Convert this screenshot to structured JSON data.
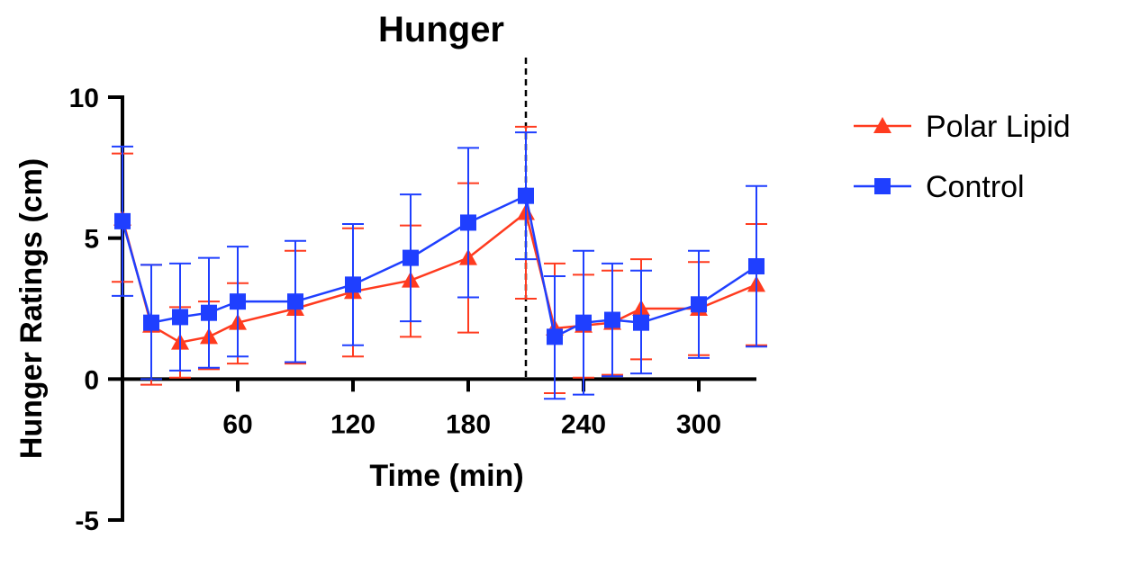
{
  "chart_data": {
    "type": "line",
    "title": "Hunger",
    "xlabel": "Time (min)",
    "ylabel": "Hunger Ratings (cm)",
    "xlim": [
      0,
      330
    ],
    "ylim": [
      -5,
      10
    ],
    "x_ticks": [
      60,
      120,
      180,
      240,
      300
    ],
    "y_ticks": [
      10,
      5,
      0,
      -5
    ],
    "vline_x": 210,
    "legend_position": "right",
    "series": [
      {
        "name": "Polar Lipid",
        "color": "#ff3b1f",
        "marker": "triangle",
        "x": [
          0,
          15,
          30,
          45,
          60,
          90,
          120,
          150,
          180,
          210,
          225,
          240,
          255,
          270,
          300,
          330
        ],
        "y": [
          5.7,
          1.9,
          1.3,
          1.5,
          2.0,
          2.5,
          3.1,
          3.5,
          4.3,
          5.9,
          1.8,
          1.9,
          2.0,
          2.5,
          2.5,
          3.35
        ],
        "err_low": [
          3.45,
          -0.2,
          0.05,
          0.35,
          0.55,
          0.55,
          0.8,
          1.5,
          1.65,
          2.85,
          -0.5,
          0.05,
          0.15,
          0.7,
          0.85,
          1.2
        ],
        "err_high": [
          8.0,
          4.05,
          2.55,
          2.75,
          3.4,
          4.55,
          5.35,
          5.45,
          6.95,
          8.95,
          4.1,
          3.7,
          3.85,
          4.25,
          4.15,
          5.5
        ]
      },
      {
        "name": "Control",
        "color": "#1f3fff",
        "marker": "square",
        "x": [
          0,
          15,
          30,
          45,
          60,
          90,
          120,
          150,
          180,
          210,
          225,
          240,
          255,
          270,
          300,
          330
        ],
        "y": [
          5.6,
          2.0,
          2.2,
          2.35,
          2.75,
          2.75,
          3.35,
          4.3,
          5.55,
          6.5,
          1.5,
          2.0,
          2.1,
          2.0,
          2.65,
          4.0
        ],
        "err_low": [
          2.95,
          0.0,
          0.3,
          0.4,
          0.8,
          0.6,
          1.2,
          2.05,
          2.9,
          4.25,
          -0.7,
          -0.55,
          0.1,
          0.2,
          0.75,
          1.15
        ],
        "err_high": [
          8.25,
          4.05,
          4.1,
          4.3,
          4.7,
          4.9,
          5.5,
          6.55,
          8.2,
          8.75,
          3.65,
          4.55,
          4.1,
          3.85,
          4.55,
          6.85
        ]
      }
    ]
  }
}
